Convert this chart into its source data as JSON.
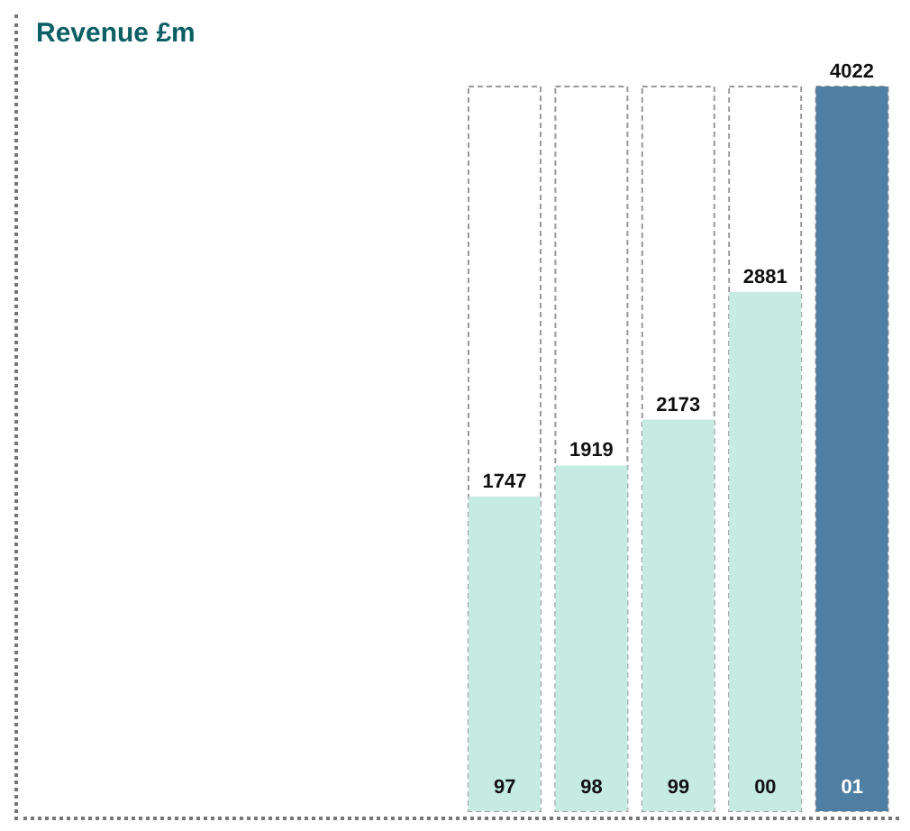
{
  "chart_data": {
    "type": "bar",
    "title": "Revenue £m",
    "categories": [
      "97",
      "98",
      "99",
      "00",
      "01"
    ],
    "values": [
      1747,
      1919,
      2173,
      2881,
      4022
    ],
    "colors": [
      "#c6ebe2",
      "#c6ebe2",
      "#c6ebe2",
      "#c6ebe2",
      "#4f7fa3"
    ],
    "data_labels": true
  }
}
